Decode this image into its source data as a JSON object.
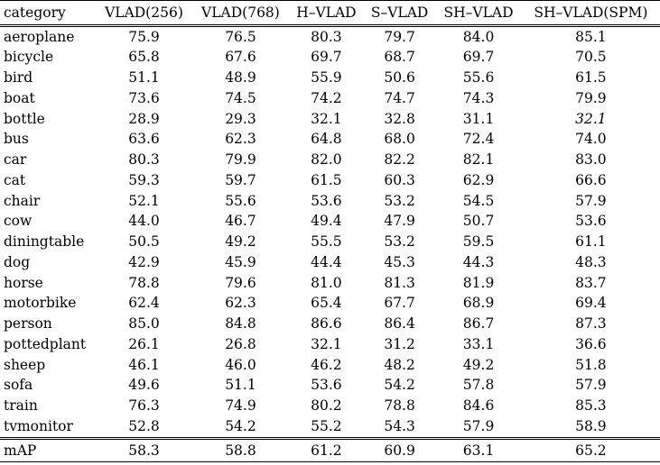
{
  "table": {
    "headers": [
      "category",
      "VLAD(256)",
      "VLAD(768)",
      "H–VLAD",
      "S–VLAD",
      "SH–VLAD",
      "SH–VLAD(SPM)"
    ],
    "rows": [
      [
        "aeroplane",
        "75.9",
        "76.5",
        "80.3",
        "79.7",
        "84.0",
        "85.1"
      ],
      [
        "bicycle",
        "65.8",
        "67.6",
        "69.7",
        "68.7",
        "69.7",
        "70.5"
      ],
      [
        "bird",
        "51.1",
        "48.9",
        "55.9",
        "50.6",
        "55.6",
        "61.5"
      ],
      [
        "boat",
        "73.6",
        "74.5",
        "74.2",
        "74.7",
        "74.3",
        "79.9"
      ],
      [
        "bottle",
        "28.9",
        "29.3",
        "32.1",
        "32.8",
        "31.1",
        "32.1"
      ],
      [
        "bus",
        "63.6",
        "62.3",
        "64.8",
        "68.0",
        "72.4",
        "74.0"
      ],
      [
        "car",
        "80.3",
        "79.9",
        "82.0",
        "82.2",
        "82.1",
        "83.0"
      ],
      [
        "cat",
        "59.3",
        "59.7",
        "61.5",
        "60.3",
        "62.9",
        "66.6"
      ],
      [
        "chair",
        "52.1",
        "55.6",
        "53.6",
        "53.2",
        "54.5",
        "57.9"
      ],
      [
        "cow",
        "44.0",
        "46.7",
        "49.4",
        "47.9",
        "50.7",
        "53.6"
      ],
      [
        "diningtable",
        "50.5",
        "49.2",
        "55.5",
        "53.2",
        "59.5",
        "61.1"
      ],
      [
        "dog",
        "42.9",
        "45.9",
        "44.4",
        "45.3",
        "44.3",
        "48.3"
      ],
      [
        "horse",
        "78.8",
        "79.6",
        "81.0",
        "81.3",
        "81.9",
        "83.7"
      ],
      [
        "motorbike",
        "62.4",
        "62.3",
        "65.4",
        "67.7",
        "68.9",
        "69.4"
      ],
      [
        "person",
        "85.0",
        "84.8",
        "86.6",
        "86.4",
        "86.7",
        "87.3"
      ],
      [
        "pottedplant",
        "26.1",
        "26.8",
        "32.1",
        "31.2",
        "33.1",
        "36.6"
      ],
      [
        "sheep",
        "46.1",
        "46.0",
        "46.2",
        "48.2",
        "49.2",
        "51.8"
      ],
      [
        "sofa",
        "49.6",
        "51.1",
        "53.6",
        "54.2",
        "57.8",
        "57.9"
      ],
      [
        "train",
        "76.3",
        "74.9",
        "80.2",
        "78.8",
        "84.6",
        "85.3"
      ],
      [
        "tvmonitor",
        "52.8",
        "54.2",
        "55.2",
        "54.3",
        "57.9",
        "58.9"
      ]
    ],
    "footer": [
      "mAP",
      "58.3",
      "58.8",
      "61.2",
      "60.9",
      "63.1",
      "65.2"
    ]
  }
}
